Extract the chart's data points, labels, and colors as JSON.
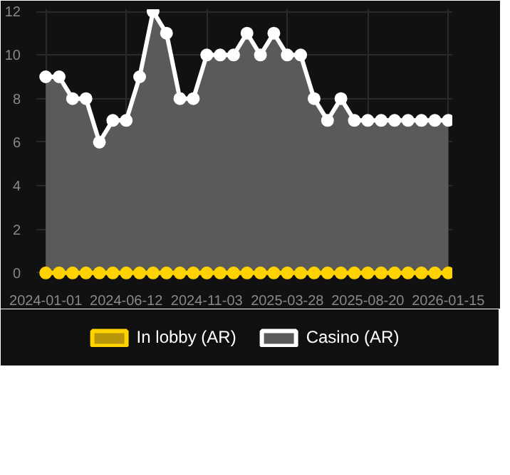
{
  "chart_data": {
    "type": "area",
    "categories": [
      "2024-01-01",
      null,
      null,
      null,
      null,
      null,
      "2024-06-12",
      null,
      null,
      null,
      null,
      null,
      "2024-11-03",
      null,
      null,
      null,
      null,
      null,
      "2025-03-28",
      null,
      null,
      null,
      null,
      null,
      "2025-08-20",
      null,
      null,
      null,
      null,
      null,
      "2026-01-15"
    ],
    "series": [
      {
        "name": "In lobby (AR)",
        "type": "line",
        "color": "#ffd200",
        "values": [
          0,
          0,
          0,
          0,
          0,
          0,
          0,
          0,
          0,
          0,
          0,
          0,
          0,
          0,
          0,
          0,
          0,
          0,
          0,
          0,
          0,
          0,
          0,
          0,
          0,
          0,
          0,
          0,
          0,
          0,
          0
        ]
      },
      {
        "name": "Casino (AR)",
        "type": "area",
        "color": "#ffffff",
        "values": [
          9,
          9,
          8,
          8,
          6,
          7,
          7,
          9,
          12,
          11,
          8,
          8,
          10,
          10,
          10,
          11,
          10,
          11,
          10,
          10,
          8,
          7,
          8,
          7,
          7,
          7,
          7,
          7,
          7,
          7,
          7
        ]
      }
    ],
    "ylim": [
      0,
      12
    ],
    "yticks": [
      0,
      2,
      4,
      6,
      8,
      10,
      12
    ],
    "grid": true,
    "legend": "bottom",
    "marker": "circle"
  }
}
